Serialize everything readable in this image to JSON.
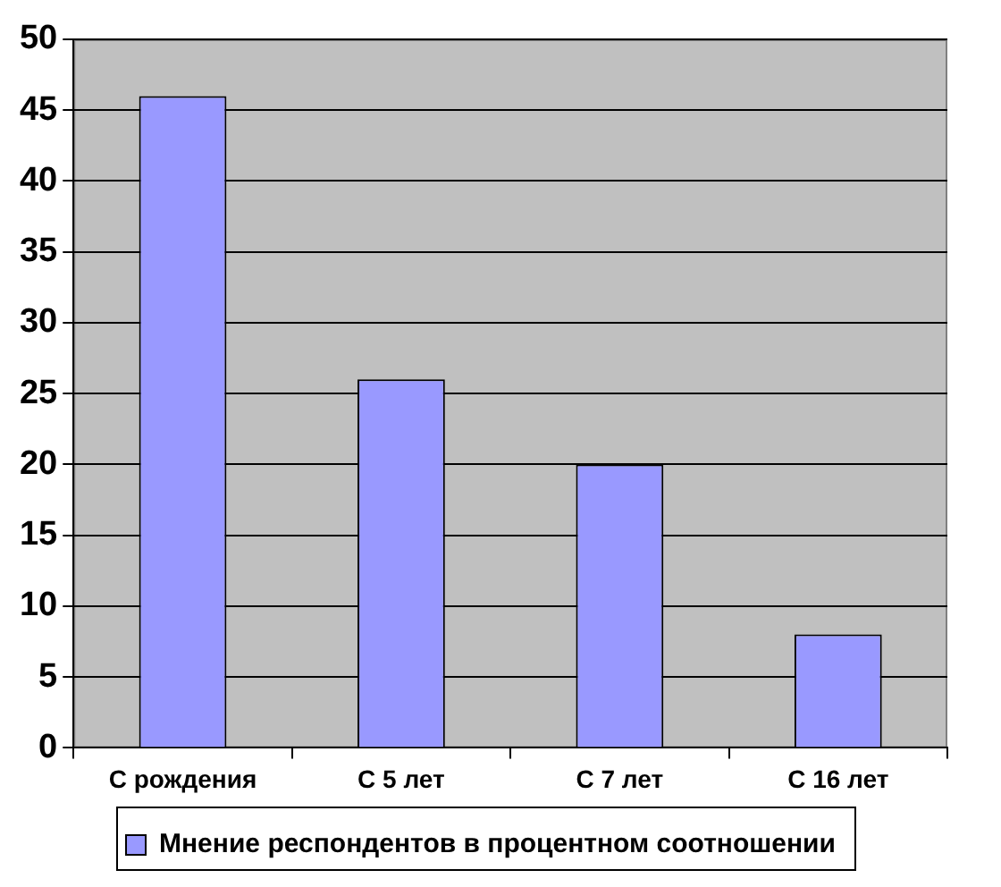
{
  "chart_data": {
    "type": "bar",
    "categories": [
      "С рождения",
      "С 5 лет",
      "С 7 лет",
      "С 16 лет"
    ],
    "series": [
      {
        "name": "Мнение респондентов в процентном соотношении",
        "color": "#9999ff",
        "values": [
          46,
          26,
          20,
          8
        ]
      }
    ],
    "ylim": [
      0,
      50
    ],
    "yticks": [
      0,
      5,
      10,
      15,
      20,
      25,
      30,
      35,
      40,
      45,
      50
    ],
    "grid": "y",
    "legend": "bottom"
  }
}
